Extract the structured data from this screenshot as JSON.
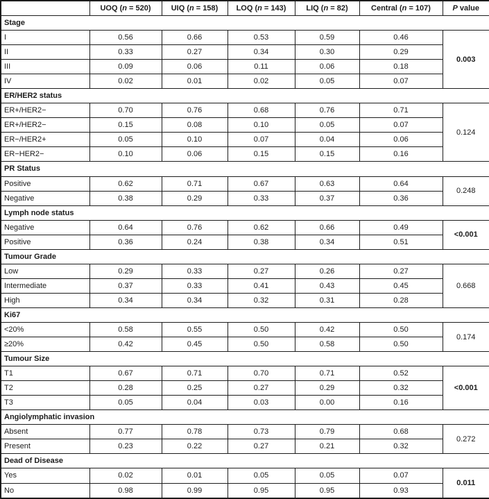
{
  "table": {
    "columns": [
      {
        "key": "row-label",
        "prefix": "",
        "italic": "",
        "suffix": ""
      },
      {
        "key": "uoq",
        "prefix": "UOQ (",
        "italic": "n",
        "suffix": " = 520)"
      },
      {
        "key": "uiq",
        "prefix": "UIQ (",
        "italic": "n",
        "suffix": " = 158)"
      },
      {
        "key": "loq",
        "prefix": "LOQ (",
        "italic": "n",
        "suffix": " = 143)"
      },
      {
        "key": "liq",
        "prefix": "LIQ (",
        "italic": "n",
        "suffix": " = 82)"
      },
      {
        "key": "central",
        "prefix": "Central (",
        "italic": "n",
        "suffix": " = 107)"
      },
      {
        "key": "p-value",
        "prefix": "",
        "italic": "P",
        "suffix": " value"
      }
    ],
    "sections": [
      {
        "header": "Stage",
        "p_value": "0.003",
        "p_bold": true,
        "rows": [
          {
            "label": "I",
            "values": [
              "0.56",
              "0.66",
              "0.53",
              "0.59",
              "0.46"
            ]
          },
          {
            "label": "II",
            "values": [
              "0.33",
              "0.27",
              "0.34",
              "0.30",
              "0.29"
            ]
          },
          {
            "label": "III",
            "values": [
              "0.09",
              "0.06",
              "0.11",
              "0.06",
              "0.18"
            ]
          },
          {
            "label": "IV",
            "values": [
              "0.02",
              "0.01",
              "0.02",
              "0.05",
              "0.07"
            ]
          }
        ]
      },
      {
        "header": "ER/HER2 status",
        "p_value": "0.124",
        "p_bold": false,
        "rows": [
          {
            "label": "ER+/HER2−",
            "values": [
              "0.70",
              "0.76",
              "0.68",
              "0.76",
              "0.71"
            ]
          },
          {
            "label": "ER+/HER2−",
            "values": [
              "0.15",
              "0.08",
              "0.10",
              "0.05",
              "0.07"
            ]
          },
          {
            "label": "ER−/HER2+",
            "values": [
              "0.05",
              "0.10",
              "0.07",
              "0.04",
              "0.06"
            ]
          },
          {
            "label": "ER−HER2−",
            "values": [
              "0.10",
              "0.06",
              "0.15",
              "0.15",
              "0.16"
            ]
          }
        ]
      },
      {
        "header": "PR Status",
        "p_value": "0.248",
        "p_bold": false,
        "rows": [
          {
            "label": "Positive",
            "values": [
              "0.62",
              "0.71",
              "0.67",
              "0.63",
              "0.64"
            ]
          },
          {
            "label": "Negative",
            "values": [
              "0.38",
              "0.29",
              "0.33",
              "0.37",
              "0.36"
            ]
          }
        ]
      },
      {
        "header": "Lymph node status",
        "p_value": "<0.001",
        "p_bold": true,
        "rows": [
          {
            "label": "Negative",
            "values": [
              "0.64",
              "0.76",
              "0.62",
              "0.66",
              "0.49"
            ]
          },
          {
            "label": "Positive",
            "values": [
              "0.36",
              "0.24",
              "0.38",
              "0.34",
              "0.51"
            ]
          }
        ]
      },
      {
        "header": "Tumour Grade",
        "p_value": "0.668",
        "p_bold": false,
        "rows": [
          {
            "label": "Low",
            "values": [
              "0.29",
              "0.33",
              "0.27",
              "0.26",
              "0.27"
            ]
          },
          {
            "label": "Intermediate",
            "values": [
              "0.37",
              "0.33",
              "0.41",
              "0.43",
              "0.45"
            ]
          },
          {
            "label": "High",
            "values": [
              "0.34",
              "0.34",
              "0.32",
              "0.31",
              "0.28"
            ]
          }
        ]
      },
      {
        "header": "Ki67",
        "p_value": "0.174",
        "p_bold": false,
        "rows": [
          {
            "label": "<20%",
            "values": [
              "0.58",
              "0.55",
              "0.50",
              "0.42",
              "0.50"
            ]
          },
          {
            "label": "≥20%",
            "values": [
              "0.42",
              "0.45",
              "0.50",
              "0.58",
              "0.50"
            ]
          }
        ]
      },
      {
        "header": "Tumour Size",
        "p_value": "<0.001",
        "p_bold": true,
        "rows": [
          {
            "label": "T1",
            "values": [
              "0.67",
              "0.71",
              "0.70",
              "0.71",
              "0.52"
            ]
          },
          {
            "label": "T2",
            "values": [
              "0.28",
              "0.25",
              "0.27",
              "0.29",
              "0.32"
            ]
          },
          {
            "label": "T3",
            "values": [
              "0.05",
              "0.04",
              "0.03",
              "0.00",
              "0.16"
            ]
          }
        ]
      },
      {
        "header": "Angiolymphatic invasion",
        "p_value": "0.272",
        "p_bold": false,
        "rows": [
          {
            "label": "Absent",
            "values": [
              "0.77",
              "0.78",
              "0.73",
              "0.79",
              "0.68"
            ]
          },
          {
            "label": "Present",
            "values": [
              "0.23",
              "0.22",
              "0.27",
              "0.21",
              "0.32"
            ]
          }
        ]
      },
      {
        "header": "Dead of Disease",
        "p_value": "0.011",
        "p_bold": true,
        "rows": [
          {
            "label": "Yes",
            "values": [
              "0.02",
              "0.01",
              "0.05",
              "0.05",
              "0.07"
            ]
          },
          {
            "label": "No",
            "values": [
              "0.98",
              "0.99",
              "0.95",
              "0.95",
              "0.93"
            ]
          }
        ]
      }
    ]
  }
}
